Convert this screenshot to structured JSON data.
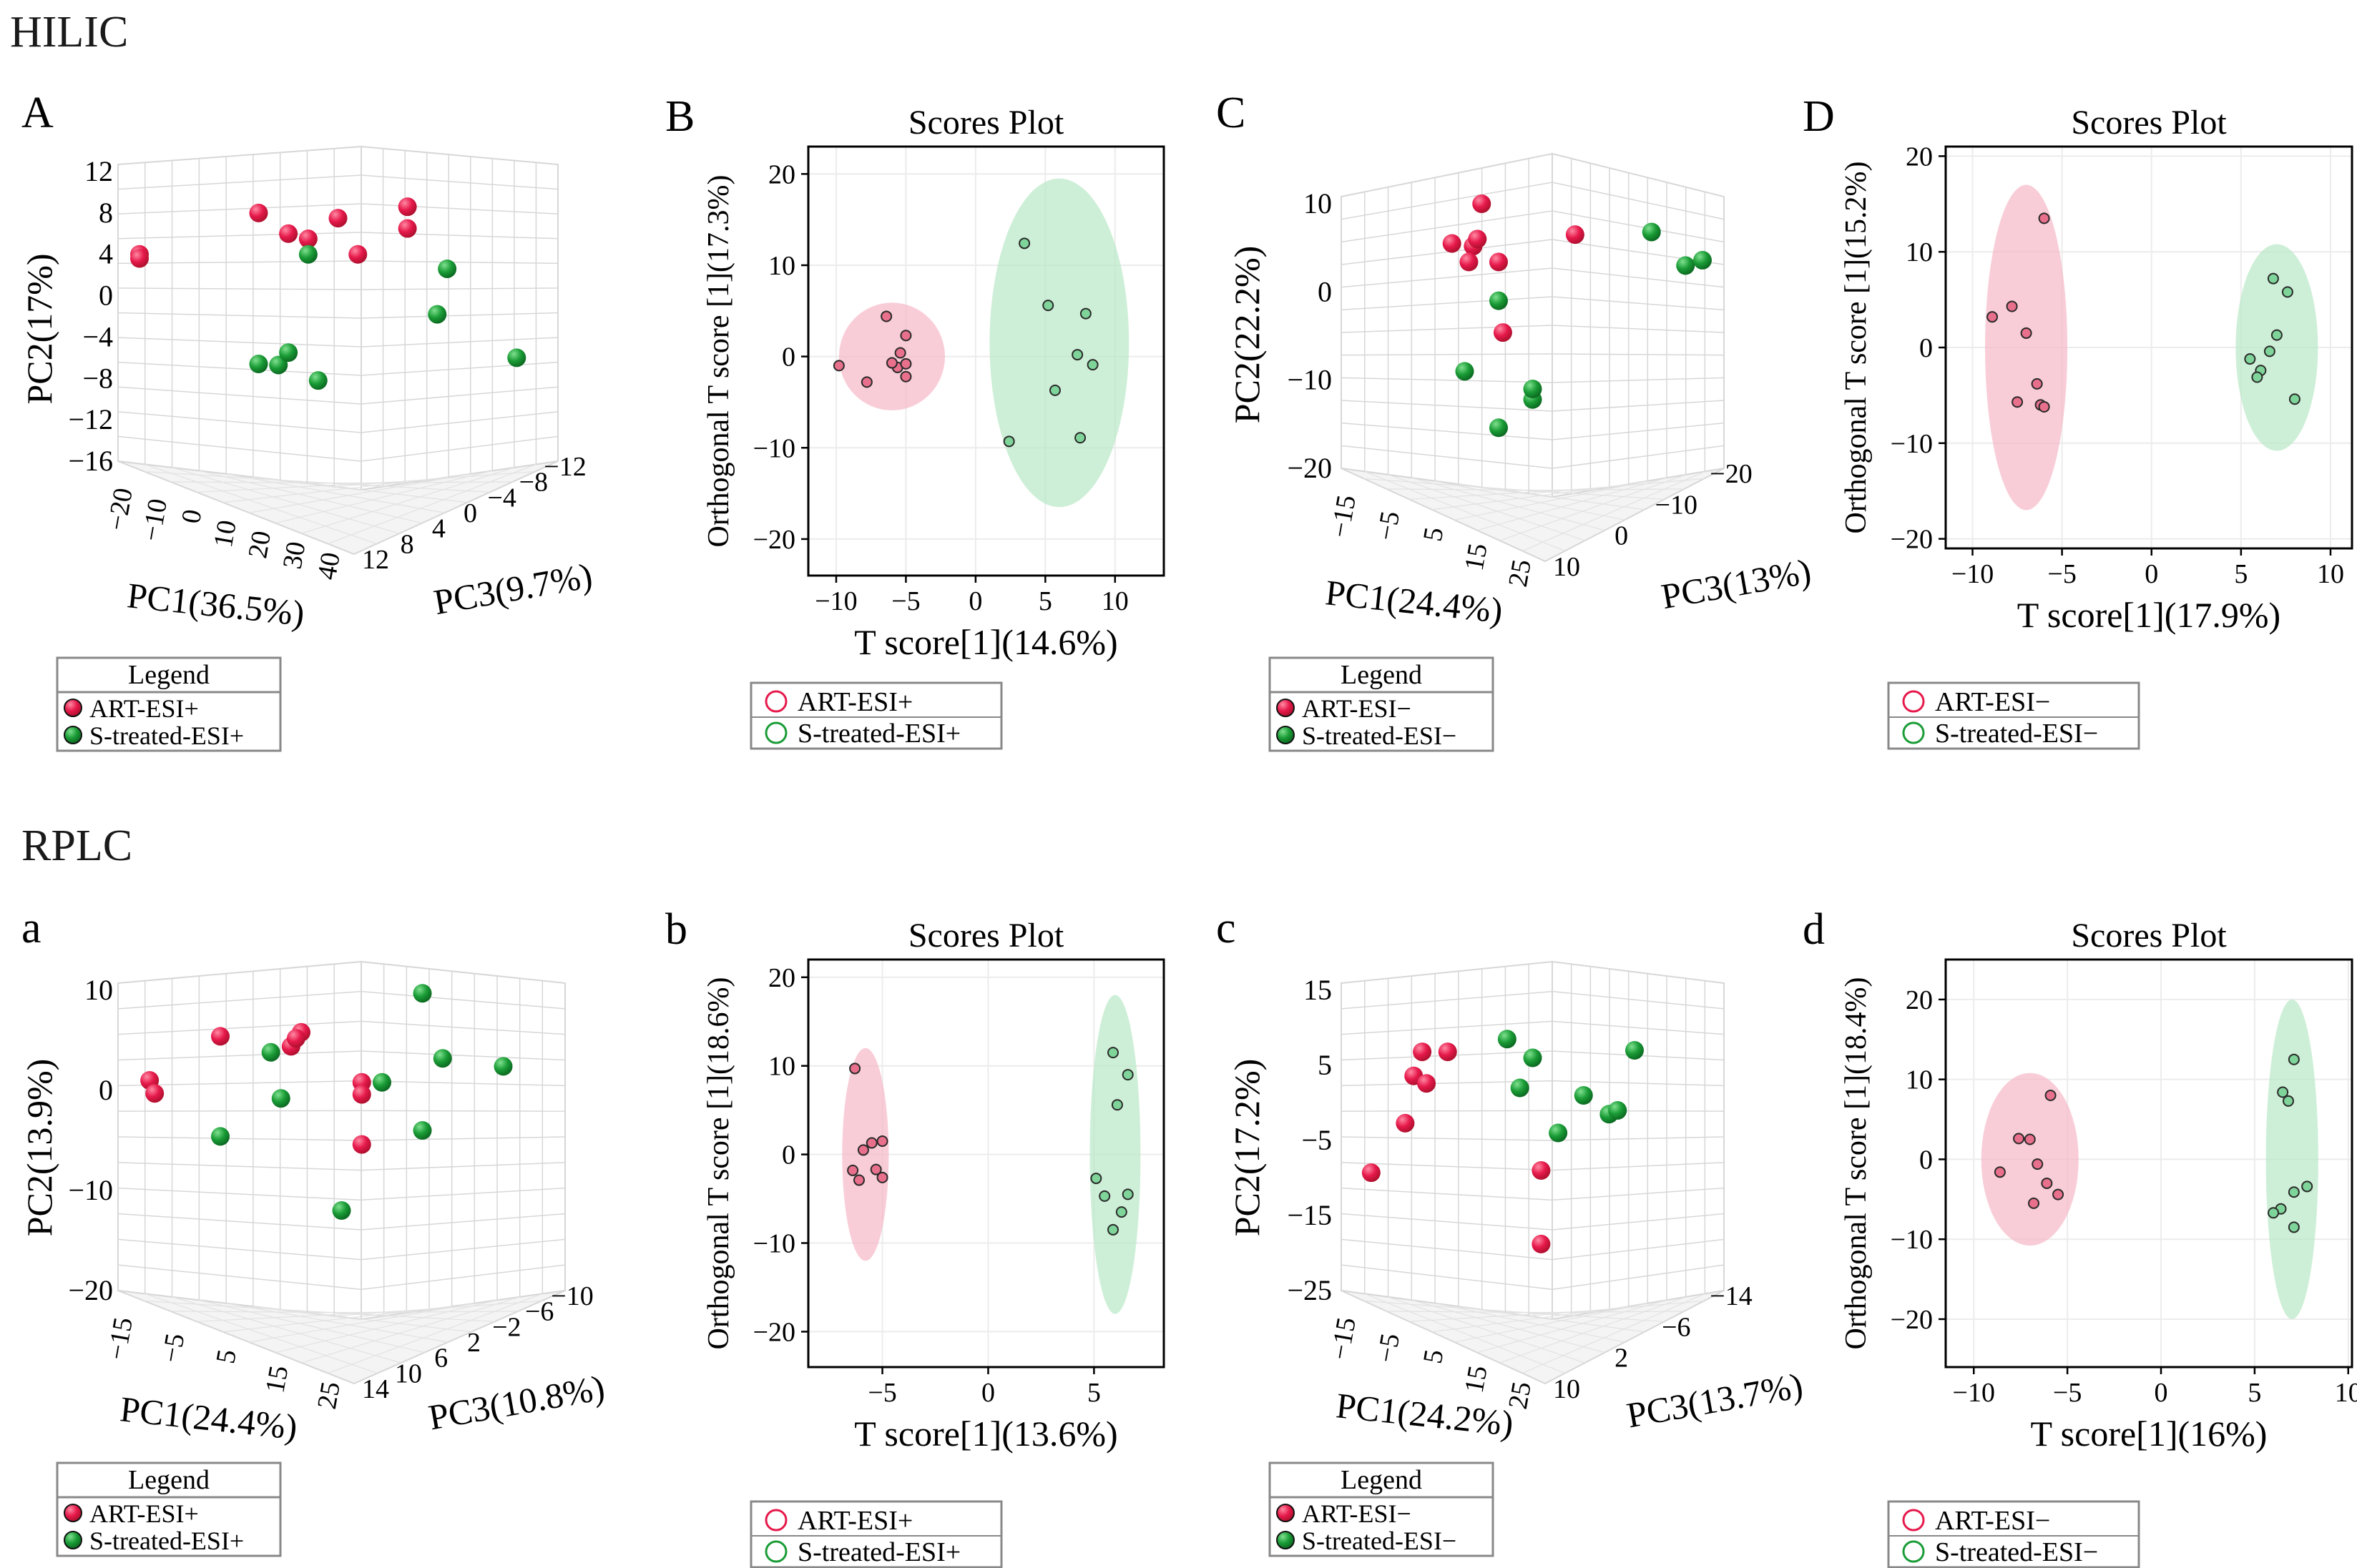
{
  "sections": {
    "hilic": "HILIC",
    "rplc": "RPLC"
  },
  "colors": {
    "art": "#e6194b",
    "art_dark": "#b0102f",
    "s": "#1a9c36",
    "s_dark": "#0c6b22",
    "art_ellipse": "#f7b8c6",
    "s_ellipse": "#b9e8c6",
    "grid": "#d7d7d7"
  },
  "chart_data": [
    {
      "id": "A",
      "panel_label": "A",
      "type": "scatter3d",
      "zlabel": "PC2(17%)",
      "xlabel": "PC1(36.5%)",
      "ylabel": "PC3(9.7%)",
      "z_ticks": [
        "12",
        "8",
        "4",
        "0",
        "−4",
        "−8",
        "−12",
        "−16"
      ],
      "x_ticks": [
        "−20",
        "−10",
        "0",
        "10",
        "20",
        "30",
        "40"
      ],
      "y_ticks": [
        "12",
        "8",
        "4",
        "0",
        "−4",
        "−8",
        "−12"
      ],
      "legend_title": "Legend",
      "legend": [
        "ART-ESI+",
        "S-treated-ESI+"
      ],
      "series": [
        {
          "name": "ART-ESI+",
          "points": [
            [
              -20,
              4
            ],
            [
              -20,
              3.6
            ],
            [
              4,
              8
            ],
            [
              20,
              7.5
            ],
            [
              10,
              6
            ],
            [
              14,
              5.5
            ],
            [
              24,
              4
            ],
            [
              34,
              8.6
            ],
            [
              34,
              6.5
            ]
          ]
        },
        {
          "name": "S-treated-ESI+",
          "points": [
            [
              14,
              4
            ],
            [
              40,
              -1.8
            ],
            [
              42,
              2.6
            ],
            [
              4,
              -6.6
            ],
            [
              8,
              -6.7
            ],
            [
              10,
              -5.5
            ],
            [
              16,
              -8.2
            ],
            [
              56,
              -6
            ]
          ]
        }
      ]
    },
    {
      "id": "B",
      "panel_label": "B",
      "type": "scatter",
      "title": "Scores Plot",
      "xlabel": "T score[1](14.6%)",
      "ylabel": "Orthogonal T score [1](17.3%)",
      "xlim": [
        -12,
        13.5
      ],
      "ylim": [
        -24,
        23
      ],
      "x_ticks": [
        -10,
        -5,
        0,
        5,
        10
      ],
      "y_ticks": [
        -20,
        -10,
        0,
        10,
        20
      ],
      "legend": [
        "ART-ESI+",
        "S-treated-ESI+"
      ],
      "ellipses": [
        {
          "series": "ART-ESI+",
          "cx": -6,
          "cy": 0,
          "rx": 3.8,
          "ry": 5.9
        },
        {
          "series": "S-treated-ESI+",
          "cx": 6,
          "cy": 1.5,
          "rx": 5,
          "ry": 18
        }
      ],
      "series": [
        {
          "name": "ART-ESI+",
          "points": [
            [
              -9.8,
              -1
            ],
            [
              -7.8,
              -2.8
            ],
            [
              -6.4,
              4.4
            ],
            [
              -5.6,
              -1.2
            ],
            [
              -5.4,
              0.4
            ],
            [
              -5,
              -0.8
            ],
            [
              -5,
              2.3
            ],
            [
              -5,
              -2.2
            ],
            [
              -6,
              -0.7
            ]
          ]
        },
        {
          "name": "S-treated-ESI+",
          "points": [
            [
              3.5,
              12.4
            ],
            [
              5.2,
              5.6
            ],
            [
              7.9,
              4.7
            ],
            [
              7.3,
              0.2
            ],
            [
              8.4,
              -0.9
            ],
            [
              5.7,
              -3.7
            ],
            [
              2.4,
              -9.3
            ],
            [
              7.5,
              -8.9
            ]
          ]
        }
      ]
    },
    {
      "id": "C",
      "panel_label": "C",
      "type": "scatter3d",
      "zlabel": "PC2(22.2%)",
      "xlabel": "PC1(24.4%)",
      "ylabel": "PC3(13%)",
      "z_ticks": [
        "10",
        "0",
        "−10",
        "−20"
      ],
      "x_ticks": [
        "−15",
        "−5",
        "5",
        "15",
        "25"
      ],
      "y_ticks": [
        "10",
        "0",
        "−10",
        "−20"
      ],
      "legend_title": "Legend",
      "legend": [
        "ART-ESI−",
        "S-treated-ESI−"
      ],
      "series": [
        {
          "name": "ART-ESI−",
          "points": [
            [
              8,
              10
            ],
            [
              1,
              5.5
            ],
            [
              6,
              5.2
            ],
            [
              7,
              6
            ],
            [
              5,
              3.4
            ],
            [
              12,
              3.4
            ],
            [
              30,
              6.5
            ],
            [
              13,
              -4.6
            ]
          ]
        },
        {
          "name": "S-treated-ESI−",
          "points": [
            [
              12,
              -1
            ],
            [
              4,
              -9
            ],
            [
              12,
              -15.4
            ],
            [
              20,
              -12.2
            ],
            [
              20,
              -11
            ],
            [
              48,
              6.8
            ],
            [
              56,
              3
            ],
            [
              60,
              3.6
            ]
          ]
        }
      ]
    },
    {
      "id": "D",
      "panel_label": "D",
      "type": "scatter",
      "title": "Scores Plot",
      "xlabel": "T score[1](17.9%)",
      "ylabel": "Orthogonal T score [1](15.2%)",
      "xlim": [
        -11.5,
        11.2
      ],
      "ylim": [
        -21,
        21
      ],
      "x_ticks": [
        -10,
        -5,
        0,
        5,
        10
      ],
      "y_ticks": [
        -20,
        -10,
        0,
        10,
        20
      ],
      "legend": [
        "ART-ESI−",
        "S-treated-ESI−"
      ],
      "ellipses": [
        {
          "series": "ART-ESI−",
          "cx": -7,
          "cy": 0,
          "rx": 2.3,
          "ry": 17
        },
        {
          "series": "S-treated-ESI−",
          "cx": 7,
          "cy": 0,
          "rx": 2.3,
          "ry": 10.8
        }
      ],
      "series": [
        {
          "name": "ART-ESI−",
          "points": [
            [
              -6,
              13.5
            ],
            [
              -7.8,
              4.3
            ],
            [
              -8.9,
              3.2
            ],
            [
              -7,
              1.5
            ],
            [
              -6.4,
              -3.8
            ],
            [
              -7.5,
              -5.7
            ],
            [
              -6.2,
              -6
            ],
            [
              -6,
              -6.2
            ]
          ]
        },
        {
          "name": "S-treated-ESI−",
          "points": [
            [
              6.8,
              7.2
            ],
            [
              7.6,
              5.8
            ],
            [
              7,
              1.3
            ],
            [
              6.6,
              -0.4
            ],
            [
              5.5,
              -1.2
            ],
            [
              6.1,
              -2.4
            ],
            [
              5.9,
              -3.1
            ],
            [
              8,
              -5.4
            ]
          ]
        }
      ]
    },
    {
      "id": "a",
      "panel_label": "a",
      "type": "scatter3d",
      "zlabel": "PC2(13.9%)",
      "xlabel": "PC1(24.4%)",
      "ylabel": "PC3(10.8%)",
      "z_ticks": [
        "10",
        "0",
        "−10",
        "−20"
      ],
      "x_ticks": [
        "−15",
        "−5",
        "5",
        "15",
        "25"
      ],
      "y_ticks": [
        "14",
        "10",
        "6",
        "2",
        "−2",
        "−6",
        "−10"
      ],
      "legend_title": "Legend",
      "legend": [
        "ART-ESI+",
        "S-treated-ESI+"
      ],
      "series": [
        {
          "name": "ART-ESI+",
          "points": [
            [
              -18,
              1
            ],
            [
              -17,
              -0.3
            ],
            [
              -4,
              5.4
            ],
            [
              10,
              4.4
            ],
            [
              12,
              5.8
            ],
            [
              11,
              5.2
            ],
            [
              24,
              0.8
            ],
            [
              24,
              -0.4
            ],
            [
              24,
              -5.4
            ]
          ]
        },
        {
          "name": "S-treated-ESI+",
          "points": [
            [
              6,
              3.8
            ],
            [
              -4,
              -4.6
            ],
            [
              8,
              -0.8
            ],
            [
              28,
              0.8
            ],
            [
              36,
              9.7
            ],
            [
              40,
              3.2
            ],
            [
              52,
              2.4
            ],
            [
              36,
              -4
            ],
            [
              20,
              -12
            ]
          ]
        }
      ]
    },
    {
      "id": "b",
      "panel_label": "b",
      "type": "scatter",
      "title": "Scores Plot",
      "xlabel": "T score[1](13.6%)",
      "ylabel": "Orthogonal T score [1](18.6%)",
      "xlim": [
        -8.5,
        8.3
      ],
      "ylim": [
        -24,
        22
      ],
      "x_ticks": [
        -5,
        0,
        5
      ],
      "y_ticks": [
        -20,
        -10,
        0,
        10,
        20
      ],
      "legend": [
        "ART-ESI+",
        "S-treated-ESI+"
      ],
      "ellipses": [
        {
          "series": "ART-ESI+",
          "cx": -5.8,
          "cy": 0,
          "rx": 1.1,
          "ry": 12
        },
        {
          "series": "S-treated-ESI+",
          "cx": 6,
          "cy": 0,
          "rx": 1.2,
          "ry": 18
        }
      ],
      "series": [
        {
          "name": "ART-ESI+",
          "points": [
            [
              -6.3,
              9.7
            ],
            [
              -5.9,
              0.5
            ],
            [
              -5,
              1.5
            ],
            [
              -5.5,
              1.3
            ],
            [
              -6.4,
              -1.8
            ],
            [
              -6.1,
              -2.9
            ],
            [
              -5.3,
              -1.7
            ],
            [
              -5,
              -2.6
            ]
          ]
        },
        {
          "name": "S-treated-ESI+",
          "points": [
            [
              5.9,
              11.5
            ],
            [
              6.6,
              9
            ],
            [
              6.1,
              5.6
            ],
            [
              5.1,
              -2.7
            ],
            [
              5.5,
              -4.7
            ],
            [
              6.6,
              -4.5
            ],
            [
              6.3,
              -6.5
            ],
            [
              5.9,
              -8.5
            ]
          ]
        }
      ]
    },
    {
      "id": "c",
      "panel_label": "c",
      "type": "scatter3d",
      "zlabel": "PC2(17.2%)",
      "xlabel": "PC1(24.2%)",
      "ylabel": "PC3(13.7%)",
      "z_ticks": [
        "15",
        "5",
        "−5",
        "−15",
        "−25"
      ],
      "x_ticks": [
        "−15",
        "−5",
        "5",
        "15",
        "25"
      ],
      "y_ticks": [
        "10",
        "2",
        "−6",
        "−14"
      ],
      "legend_title": "Legend",
      "legend": [
        "ART-ESI−",
        "S-treated-ESI−"
      ],
      "series": [
        {
          "name": "ART-ESI−",
          "points": [
            [
              -6,
              6.8
            ],
            [
              -8,
              3.6
            ],
            [
              -5,
              2.6
            ],
            [
              0,
              6.8
            ],
            [
              -10,
              -2.7
            ],
            [
              -18,
              -9.3
            ],
            [
              22,
              -9
            ],
            [
              22,
              -18.8
            ]
          ]
        },
        {
          "name": "S-treated-ESI−",
          "points": [
            [
              14,
              8.5
            ],
            [
              20,
              6
            ],
            [
              17,
              2
            ],
            [
              32,
              1
            ],
            [
              26,
              -4
            ],
            [
              38,
              -1.5
            ],
            [
              40,
              -1
            ],
            [
              44,
              7
            ]
          ]
        }
      ]
    },
    {
      "id": "d",
      "panel_label": "d",
      "type": "scatter",
      "title": "Scores Plot",
      "xlabel": "T score[1](16%)",
      "ylabel": "Orthogonal T score [1](18.4%)",
      "xlim": [
        -11.5,
        10.2
      ],
      "ylim": [
        -26,
        25
      ],
      "x_ticks": [
        -10,
        -5,
        0,
        5,
        10
      ],
      "y_ticks": [
        -20,
        -10,
        0,
        10,
        20
      ],
      "legend": [
        "ART-ESI−",
        "S-treated-ESI−"
      ],
      "ellipses": [
        {
          "series": "ART-ESI−",
          "cx": -7,
          "cy": 0,
          "rx": 2.6,
          "ry": 10.8
        },
        {
          "series": "S-treated-ESI−",
          "cx": 7,
          "cy": 0,
          "rx": 1.4,
          "ry": 20
        }
      ],
      "series": [
        {
          "name": "ART-ESI−",
          "points": [
            [
              -5.9,
              8
            ],
            [
              -7.6,
              2.6
            ],
            [
              -7,
              2.5
            ],
            [
              -8.6,
              -1.6
            ],
            [
              -6.6,
              -0.6
            ],
            [
              -6.1,
              -3
            ],
            [
              -5.5,
              -4.4
            ],
            [
              -6.8,
              -5.5
            ]
          ]
        },
        {
          "name": "S-treated-ESI−",
          "points": [
            [
              7.1,
              12.5
            ],
            [
              6.5,
              8.4
            ],
            [
              6.8,
              7.3
            ],
            [
              7.8,
              -3.4
            ],
            [
              7.1,
              -4.1
            ],
            [
              6.4,
              -6.2
            ],
            [
              6,
              -6.7
            ],
            [
              7.1,
              -8.5
            ]
          ]
        }
      ]
    }
  ]
}
